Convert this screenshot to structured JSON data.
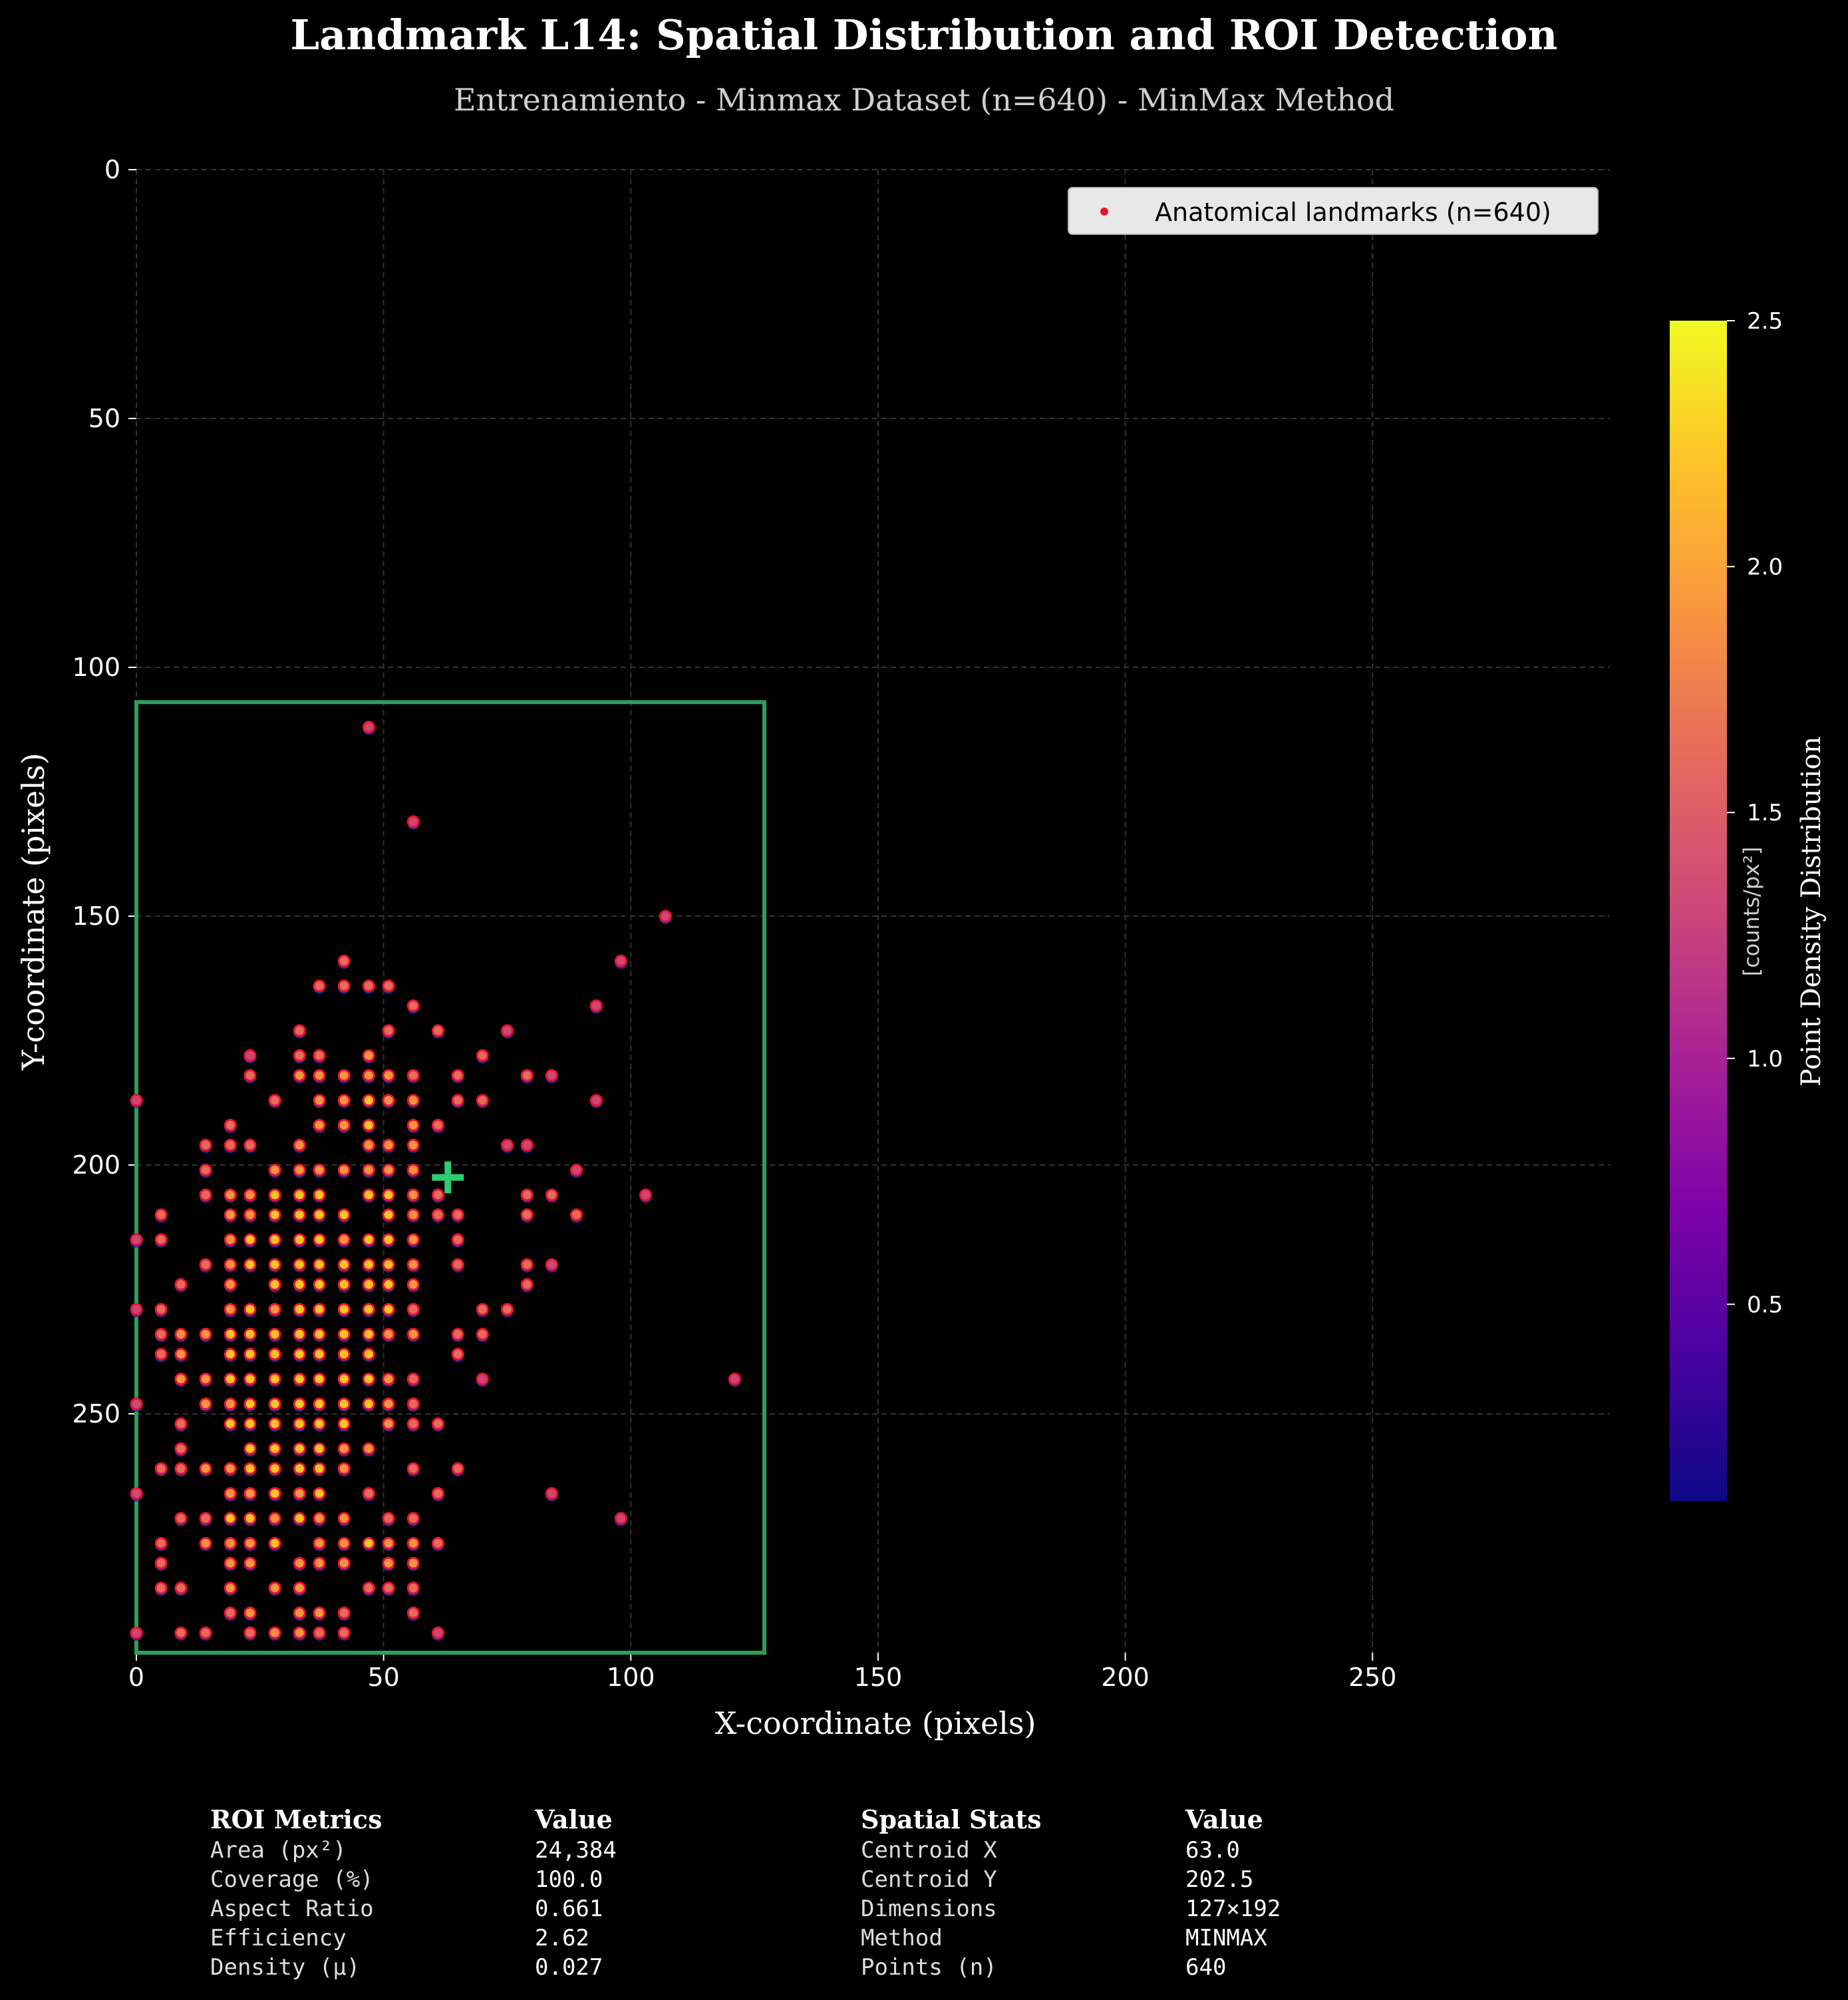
{
  "header": {
    "title": "Landmark L14: Spatial Distribution and ROI Detection",
    "subtitle": "Entrenamiento - Minmax Dataset (n=640) - MinMax Method"
  },
  "legend": {
    "label": "Anatomical landmarks (n=640)",
    "placement": "upper-right"
  },
  "colorbar": {
    "label": "Point Density Distribution",
    "unit": "[counts/px²]",
    "colormap": "plasma",
    "range": [
      0.1,
      2.5
    ],
    "ticks": [
      "0.5",
      "1.0",
      "1.5",
      "2.0",
      "2.5"
    ]
  },
  "metrics_table": {
    "roi": {
      "header": "ROI Metrics",
      "value_header": "Value",
      "rows": [
        {
          "label": "Area (px²)",
          "value": "24,384"
        },
        {
          "label": "Coverage (%)",
          "value": "100.0"
        },
        {
          "label": "Aspect Ratio",
          "value": "0.661"
        },
        {
          "label": "Efficiency",
          "value": "2.62"
        },
        {
          "label": "Density (μ)",
          "value": "0.027"
        }
      ]
    },
    "spatial": {
      "header": "Spatial Stats",
      "value_header": "Value",
      "rows": [
        {
          "label": "Centroid X",
          "value": "63.0"
        },
        {
          "label": "Centroid Y",
          "value": "202.5"
        },
        {
          "label": "Dimensions",
          "value": "127×192"
        },
        {
          "label": "Method",
          "value": "MINMAX"
        },
        {
          "label": "Points (n)",
          "value": "640"
        }
      ]
    }
  },
  "colors": {
    "background": "#000000",
    "roi": "#2e9e5b",
    "centroid": "#2ecc71",
    "point_edge": "#e8142a",
    "grid": "#333333"
  },
  "chart_data": {
    "type": "scatter",
    "xlabel": "X-coordinate (pixels)",
    "ylabel": "Y-coordinate (pixels)",
    "xlim": [
      0,
      298
    ],
    "ylim": [
      298,
      0
    ],
    "y_inverted": true,
    "grid": true,
    "xticks": [
      0,
      50,
      100,
      150,
      200,
      250
    ],
    "yticks": [
      0,
      50,
      100,
      150,
      200,
      250
    ],
    "roi": {
      "x_min": 0,
      "x_max": 127,
      "y_min": 107,
      "y_max": 299
    },
    "centroid": {
      "x": 63.0,
      "y": 202.5
    },
    "points": [
      [
        47,
        112
      ],
      [
        56,
        131
      ],
      [
        107,
        150
      ],
      [
        98,
        159
      ],
      [
        42,
        159
      ],
      [
        93,
        168
      ],
      [
        56,
        168
      ],
      [
        37,
        164
      ],
      [
        42,
        164
      ],
      [
        47,
        164
      ],
      [
        51,
        164
      ],
      [
        51,
        173
      ],
      [
        61,
        173
      ],
      [
        75,
        173
      ],
      [
        33,
        173
      ],
      [
        23,
        178
      ],
      [
        33,
        178
      ],
      [
        37,
        178
      ],
      [
        47,
        178
      ],
      [
        70,
        178
      ],
      [
        0,
        187
      ],
      [
        28,
        187
      ],
      [
        37,
        187
      ],
      [
        42,
        187
      ],
      [
        47,
        187
      ],
      [
        51,
        187
      ],
      [
        56,
        187
      ],
      [
        65,
        187
      ],
      [
        70,
        187
      ],
      [
        93,
        187
      ],
      [
        23,
        182
      ],
      [
        33,
        182
      ],
      [
        37,
        182
      ],
      [
        42,
        182
      ],
      [
        47,
        182
      ],
      [
        51,
        182
      ],
      [
        56,
        182
      ],
      [
        65,
        182
      ],
      [
        79,
        182
      ],
      [
        84,
        182
      ],
      [
        19,
        192
      ],
      [
        37,
        192
      ],
      [
        42,
        192
      ],
      [
        47,
        192
      ],
      [
        56,
        192
      ],
      [
        61,
        192
      ],
      [
        14,
        196
      ],
      [
        19,
        196
      ],
      [
        23,
        196
      ],
      [
        33,
        196
      ],
      [
        47,
        196
      ],
      [
        51,
        196
      ],
      [
        56,
        196
      ],
      [
        75,
        196
      ],
      [
        79,
        196
      ],
      [
        14,
        201
      ],
      [
        28,
        201
      ],
      [
        33,
        201
      ],
      [
        37,
        201
      ],
      [
        42,
        201
      ],
      [
        47,
        201
      ],
      [
        51,
        201
      ],
      [
        56,
        201
      ],
      [
        89,
        201
      ],
      [
        14,
        206
      ],
      [
        19,
        206
      ],
      [
        23,
        206
      ],
      [
        28,
        206
      ],
      [
        33,
        206
      ],
      [
        37,
        206
      ],
      [
        47,
        206
      ],
      [
        51,
        206
      ],
      [
        56,
        206
      ],
      [
        61,
        206
      ],
      [
        79,
        206
      ],
      [
        84,
        206
      ],
      [
        103,
        206
      ],
      [
        5,
        210
      ],
      [
        19,
        210
      ],
      [
        23,
        210
      ],
      [
        28,
        210
      ],
      [
        33,
        210
      ],
      [
        37,
        210
      ],
      [
        42,
        210
      ],
      [
        51,
        210
      ],
      [
        56,
        210
      ],
      [
        61,
        210
      ],
      [
        65,
        210
      ],
      [
        79,
        210
      ],
      [
        89,
        210
      ],
      [
        0,
        215
      ],
      [
        5,
        215
      ],
      [
        19,
        215
      ],
      [
        23,
        215
      ],
      [
        28,
        215
      ],
      [
        33,
        215
      ],
      [
        37,
        215
      ],
      [
        42,
        215
      ],
      [
        47,
        215
      ],
      [
        51,
        215
      ],
      [
        56,
        215
      ],
      [
        65,
        215
      ],
      [
        14,
        220
      ],
      [
        19,
        220
      ],
      [
        23,
        220
      ],
      [
        28,
        220
      ],
      [
        33,
        220
      ],
      [
        37,
        220
      ],
      [
        42,
        220
      ],
      [
        47,
        220
      ],
      [
        51,
        220
      ],
      [
        56,
        220
      ],
      [
        65,
        220
      ],
      [
        79,
        220
      ],
      [
        84,
        220
      ],
      [
        9,
        224
      ],
      [
        19,
        224
      ],
      [
        28,
        224
      ],
      [
        33,
        224
      ],
      [
        37,
        224
      ],
      [
        42,
        224
      ],
      [
        47,
        224
      ],
      [
        51,
        224
      ],
      [
        56,
        224
      ],
      [
        79,
        224
      ],
      [
        0,
        229
      ],
      [
        5,
        229
      ],
      [
        19,
        229
      ],
      [
        23,
        229
      ],
      [
        28,
        229
      ],
      [
        33,
        229
      ],
      [
        37,
        229
      ],
      [
        42,
        229
      ],
      [
        47,
        229
      ],
      [
        51,
        229
      ],
      [
        56,
        229
      ],
      [
        70,
        229
      ],
      [
        75,
        229
      ],
      [
        5,
        234
      ],
      [
        9,
        234
      ],
      [
        14,
        234
      ],
      [
        19,
        234
      ],
      [
        23,
        234
      ],
      [
        28,
        234
      ],
      [
        33,
        234
      ],
      [
        37,
        234
      ],
      [
        42,
        234
      ],
      [
        47,
        234
      ],
      [
        51,
        234
      ],
      [
        56,
        234
      ],
      [
        65,
        234
      ],
      [
        70,
        234
      ],
      [
        5,
        238
      ],
      [
        9,
        238
      ],
      [
        19,
        238
      ],
      [
        23,
        238
      ],
      [
        28,
        238
      ],
      [
        33,
        238
      ],
      [
        37,
        238
      ],
      [
        42,
        238
      ],
      [
        47,
        238
      ],
      [
        65,
        238
      ],
      [
        9,
        243
      ],
      [
        14,
        243
      ],
      [
        19,
        243
      ],
      [
        23,
        243
      ],
      [
        28,
        243
      ],
      [
        33,
        243
      ],
      [
        37,
        243
      ],
      [
        42,
        243
      ],
      [
        47,
        243
      ],
      [
        51,
        243
      ],
      [
        56,
        243
      ],
      [
        70,
        243
      ],
      [
        121,
        243
      ],
      [
        0,
        248
      ],
      [
        14,
        248
      ],
      [
        19,
        248
      ],
      [
        23,
        248
      ],
      [
        28,
        248
      ],
      [
        33,
        248
      ],
      [
        37,
        248
      ],
      [
        42,
        248
      ],
      [
        47,
        248
      ],
      [
        51,
        248
      ],
      [
        56,
        248
      ],
      [
        9,
        252
      ],
      [
        19,
        252
      ],
      [
        23,
        252
      ],
      [
        28,
        252
      ],
      [
        33,
        252
      ],
      [
        37,
        252
      ],
      [
        42,
        252
      ],
      [
        51,
        252
      ],
      [
        56,
        252
      ],
      [
        61,
        252
      ],
      [
        9,
        257
      ],
      [
        23,
        257
      ],
      [
        28,
        257
      ],
      [
        33,
        257
      ],
      [
        37,
        257
      ],
      [
        42,
        257
      ],
      [
        47,
        257
      ],
      [
        5,
        261
      ],
      [
        9,
        261
      ],
      [
        14,
        261
      ],
      [
        19,
        261
      ],
      [
        23,
        261
      ],
      [
        28,
        261
      ],
      [
        33,
        261
      ],
      [
        37,
        261
      ],
      [
        42,
        261
      ],
      [
        56,
        261
      ],
      [
        65,
        261
      ],
      [
        0,
        266
      ],
      [
        19,
        266
      ],
      [
        23,
        266
      ],
      [
        28,
        266
      ],
      [
        33,
        266
      ],
      [
        37,
        266
      ],
      [
        47,
        266
      ],
      [
        61,
        266
      ],
      [
        84,
        266
      ],
      [
        9,
        271
      ],
      [
        14,
        271
      ],
      [
        19,
        271
      ],
      [
        23,
        271
      ],
      [
        28,
        271
      ],
      [
        33,
        271
      ],
      [
        37,
        271
      ],
      [
        42,
        271
      ],
      [
        51,
        271
      ],
      [
        56,
        271
      ],
      [
        98,
        271
      ],
      [
        5,
        276
      ],
      [
        14,
        276
      ],
      [
        19,
        276
      ],
      [
        23,
        276
      ],
      [
        28,
        276
      ],
      [
        37,
        276
      ],
      [
        42,
        276
      ],
      [
        47,
        276
      ],
      [
        51,
        276
      ],
      [
        56,
        276
      ],
      [
        61,
        276
      ],
      [
        5,
        280
      ],
      [
        19,
        280
      ],
      [
        23,
        280
      ],
      [
        33,
        280
      ],
      [
        37,
        280
      ],
      [
        42,
        280
      ],
      [
        51,
        280
      ],
      [
        56,
        280
      ],
      [
        5,
        285
      ],
      [
        9,
        285
      ],
      [
        19,
        285
      ],
      [
        28,
        285
      ],
      [
        33,
        285
      ],
      [
        47,
        285
      ],
      [
        51,
        285
      ],
      [
        56,
        285
      ],
      [
        19,
        290
      ],
      [
        23,
        290
      ],
      [
        33,
        290
      ],
      [
        37,
        290
      ],
      [
        42,
        290
      ],
      [
        56,
        290
      ],
      [
        0,
        294
      ],
      [
        9,
        294
      ],
      [
        14,
        294
      ],
      [
        23,
        294
      ],
      [
        28,
        294
      ],
      [
        33,
        294
      ],
      [
        37,
        294
      ],
      [
        42,
        294
      ],
      [
        61,
        294
      ]
    ]
  }
}
